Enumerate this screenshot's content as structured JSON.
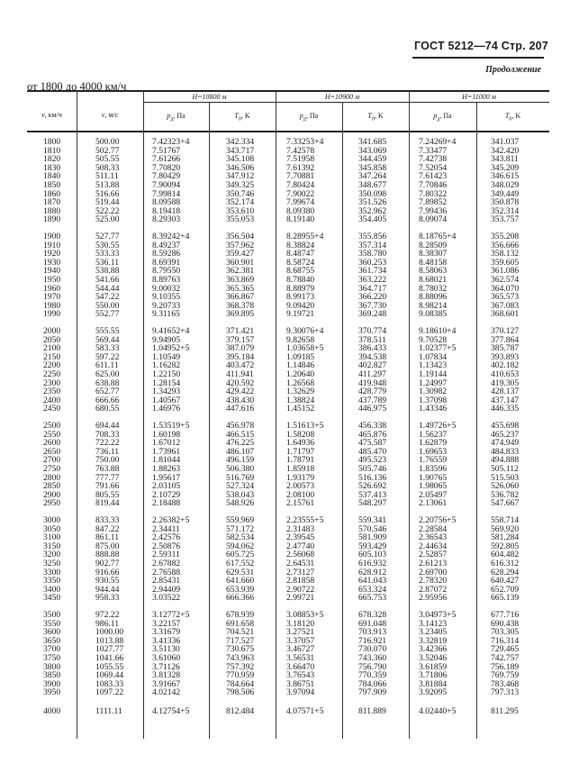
{
  "header": {
    "standard": "ГОСТ 5212—74 Стр. 207",
    "continuation": "Продолжение",
    "range": "от 1800 до 4000 км/ч"
  },
  "columns": {
    "v_kmh": {
      "sym": "v",
      "unit": ", км/ч"
    },
    "v_ms": {
      "sym": "v",
      "unit": ", м/с"
    },
    "altitudes": [
      {
        "label": "H=10800 м"
      },
      {
        "label": "H=10900 м"
      },
      {
        "label": "H=11000 м"
      }
    ],
    "p": {
      "sym": "p",
      "sub": "д",
      "unit": ", Па"
    },
    "t": {
      "sym": "T",
      "sub": "0",
      "unit": ", K"
    }
  },
  "groups": [
    [
      [
        "1800",
        "500.00",
        "7.42323+4",
        "342.334",
        "7.33253+4",
        "341.685",
        "7.24269+4",
        "341.037"
      ],
      [
        "1810",
        "502.77",
        "7.51767",
        "343.717",
        "7.42578",
        "343.069",
        "7.33477",
        "342.420"
      ],
      [
        "1820",
        "505.55",
        "7.61266",
        "345.108",
        "7.51958",
        "344.459",
        "7.42738",
        "343.811"
      ],
      [
        "1830",
        "508.33",
        "7.70820",
        "346.506",
        "7.61392",
        "345.858",
        "7.52054",
        "345.209"
      ],
      [
        "1840",
        "511.11",
        "7.80429",
        "347.912",
        "7.70881",
        "347.264",
        "7.61423",
        "346.615"
      ],
      [
        "1850",
        "513.88",
        "7.90094",
        "349.325",
        "7.80424",
        "348.677",
        "7.70846",
        "348.029"
      ],
      [
        "1860",
        "516.66",
        "7.99814",
        "350.746",
        "7.90022",
        "350.098",
        "7.80322",
        "349.449"
      ],
      [
        "1870",
        "519.44",
        "8.09588",
        "352.174",
        "7.99674",
        "351.526",
        "7.89852",
        "350.878"
      ],
      [
        "1880",
        "522.22",
        "8.19418",
        "353.610",
        "8.09380",
        "352.962",
        "7.99436",
        "352.314"
      ],
      [
        "1890",
        "525.00",
        "8.29303",
        "355.053",
        "8.19140",
        "354.405",
        "8.09074",
        "353.757"
      ]
    ],
    [
      [
        "1900",
        "527.77",
        "8.39242+4",
        "356.504",
        "8.28955+4",
        "355.856",
        "8.18765+4",
        "355.208"
      ],
      [
        "1910",
        "530.55",
        "8.49237",
        "357.962",
        "8.38824",
        "357.314",
        "8.28509",
        "356.666"
      ],
      [
        "1920",
        "533.33",
        "8.59286",
        "359.427",
        "8.48747",
        "358.780",
        "8.38307",
        "358.132"
      ],
      [
        "1930",
        "536.11",
        "8.69391",
        "360.901",
        "8.58724",
        "360.253",
        "8.48158",
        "359.605"
      ],
      [
        "1940",
        "538.88",
        "8.79550",
        "362.381",
        "8.68755",
        "361.734",
        "8.58063",
        "361.086"
      ],
      [
        "1950",
        "541.66",
        "8.89763",
        "363.869",
        "8.78840",
        "363.222",
        "8.68021",
        "362.574"
      ],
      [
        "1960",
        "544.44",
        "9.00032",
        "365.365",
        "8.88979",
        "364.717",
        "8.78032",
        "364.070"
      ],
      [
        "1970",
        "547.22",
        "9.10355",
        "366.867",
        "8.99173",
        "366.220",
        "8.88096",
        "365.573"
      ],
      [
        "1980",
        "550.00",
        "9.20733",
        "368.378",
        "9.09420",
        "367.730",
        "8.98214",
        "367.083"
      ],
      [
        "1990",
        "552.77",
        "9.31165",
        "369.895",
        "9.19721",
        "369.248",
        "9.08385",
        "368.601"
      ]
    ],
    [
      [
        "2000",
        "555.55",
        "9.41652+4",
        "371.421",
        "9.30076+4",
        "370.774",
        "9.18610+4",
        "370.127"
      ],
      [
        "2050",
        "569.44",
        "9.94905",
        "379.157",
        "9.82658",
        "378.511",
        "9.70528",
        "377.864"
      ],
      [
        "2100",
        "583.33",
        "1.04952+5",
        "387.079",
        "1.03658+5",
        "386.433",
        "1.02377+5",
        "385.787"
      ],
      [
        "2150",
        "597.22",
        "1.10549",
        "395.184",
        "1.09185",
        "394.538",
        "1.07834",
        "393.893"
      ],
      [
        "2200",
        "611.11",
        "1.16282",
        "403.472",
        "1.14846",
        "402.827",
        "1.13423",
        "402.182"
      ],
      [
        "2250",
        "625.00",
        "1.22150",
        "411.941",
        "1.20640",
        "411.297",
        "1.19144",
        "410.653"
      ],
      [
        "2300",
        "638.88",
        "1.28154",
        "420.592",
        "1.26568",
        "419.948",
        "1.24997",
        "419.305"
      ],
      [
        "2350",
        "652.77",
        "1.34293",
        "429.422",
        "1.32629",
        "428.779",
        "1.30982",
        "428.137"
      ],
      [
        "2400",
        "666.66",
        "1.40567",
        "438.430",
        "1.38824",
        "437.789",
        "1.37098",
        "437.147"
      ],
      [
        "2450",
        "680.55",
        "1.46976",
        "447.616",
        "1.45152",
        "446.975",
        "1.43346",
        "446.335"
      ]
    ],
    [
      [
        "2500",
        "694.44",
        "1.53519+5",
        "456.978",
        "1.51613+5",
        "456.338",
        "1.49726+5",
        "455.698"
      ],
      [
        "2550",
        "708.33",
        "1.60198",
        "466.515",
        "1.58208",
        "465.876",
        "1.56237",
        "465.237"
      ],
      [
        "2600",
        "722.22",
        "1.67012",
        "476.225",
        "1.64936",
        "475.587",
        "1.62879",
        "474.949"
      ],
      [
        "2650",
        "736.11",
        "1.73961",
        "486.107",
        "1.71797",
        "485.470",
        "1.69653",
        "484.833"
      ],
      [
        "2700",
        "750.00",
        "1.81044",
        "496.159",
        "1.78791",
        "495.523",
        "1.76559",
        "494.888"
      ],
      [
        "2750",
        "763.88",
        "1.88263",
        "506.380",
        "1.85918",
        "505.746",
        "1.83596",
        "505.112"
      ],
      [
        "2800",
        "777.77",
        "1.95617",
        "516.769",
        "1.93179",
        "516.136",
        "1.90765",
        "515.503"
      ],
      [
        "2850",
        "791.66",
        "2.03105",
        "527.324",
        "2.00573",
        "526.692",
        "1.98065",
        "526.060"
      ],
      [
        "2900",
        "805.55",
        "2.10729",
        "538.043",
        "2.08100",
        "537.413",
        "2.05497",
        "536.782"
      ],
      [
        "2950",
        "819.44",
        "2.18488",
        "548.926",
        "2.15761",
        "548.297",
        "2.13061",
        "547.667"
      ]
    ],
    [
      [
        "3000",
        "833.33",
        "2.26382+5",
        "559.969",
        "2.23555+5",
        "559.341",
        "2.20756+5",
        "558.714"
      ],
      [
        "3050",
        "847.22",
        "2.34411",
        "571.172",
        "2.31483",
        "570.546",
        "2.28584",
        "569.920"
      ],
      [
        "3100",
        "861.11",
        "2.42576",
        "582.534",
        "2.39545",
        "581.909",
        "2.36543",
        "581.284"
      ],
      [
        "3150",
        "875.00",
        "2.50876",
        "594.062",
        "2.47740",
        "593.429",
        "2.44634",
        "592.805"
      ],
      [
        "3200",
        "888.88",
        "2.59311",
        "605.725",
        "2.56068",
        "605.103",
        "2.52857",
        "604.482"
      ],
      [
        "3250",
        "902.77",
        "2.67882",
        "617.552",
        "2.64531",
        "616.932",
        "2.61213",
        "616.312"
      ],
      [
        "3300",
        "916.66",
        "2.76588",
        "629.531",
        "2.73127",
        "628.912",
        "2.69700",
        "628.294"
      ],
      [
        "3350",
        "930.55",
        "2.85431",
        "641.660",
        "2.81858",
        "641.043",
        "2.78320",
        "640.427"
      ],
      [
        "3400",
        "944.44",
        "2.94409",
        "653.939",
        "2.90722",
        "653.324",
        "2.87072",
        "652.709"
      ],
      [
        "3450",
        "958.33",
        "3.03522",
        "666.366",
        "2.99721",
        "665.753",
        "2.95956",
        "665.139"
      ]
    ],
    [
      [
        "3500",
        "972.22",
        "3.12772+5",
        "678.939",
        "3.08853+5",
        "678.328",
        "3.04973+5",
        "677.716"
      ],
      [
        "3550",
        "986.11",
        "3.22157",
        "691.658",
        "3.18120",
        "691.048",
        "3.14123",
        "690.438"
      ],
      [
        "3600",
        "1000.00",
        "3.31679",
        "704.521",
        "3.27521",
        "703.913",
        "3.23405",
        "703.305"
      ],
      [
        "3650",
        "1013.88",
        "3.41336",
        "717.527",
        "3.37057",
        "716.921",
        "3.32819",
        "716.314"
      ],
      [
        "3700",
        "1027.77",
        "3.51130",
        "730.675",
        "3.46727",
        "730.070",
        "3.42366",
        "729.465"
      ],
      [
        "3750",
        "1041.66",
        "3.61060",
        "743.963",
        "3.56531",
        "743.360",
        "3.52046",
        "742.757"
      ],
      [
        "3800",
        "1055.55",
        "3.71126",
        "757.392",
        "3.66470",
        "756.790",
        "3.61859",
        "756.189"
      ],
      [
        "3850",
        "1069.44",
        "3.81328",
        "770.959",
        "3.76543",
        "770.359",
        "3.71806",
        "769.759"
      ],
      [
        "3900",
        "1083.33",
        "3.91667",
        "784.664",
        "3.86751",
        "784.066",
        "3.81884",
        "783.468"
      ],
      [
        "3950",
        "1097.22",
        "4.02142",
        "798.506",
        "3.97094",
        "797.909",
        "3.92095",
        "797.313"
      ]
    ],
    [
      [
        "4000",
        "1111.11",
        "4.12754+5",
        "812.484",
        "4.07571+5",
        "811.889",
        "4.02440+5",
        "811.295"
      ]
    ]
  ]
}
